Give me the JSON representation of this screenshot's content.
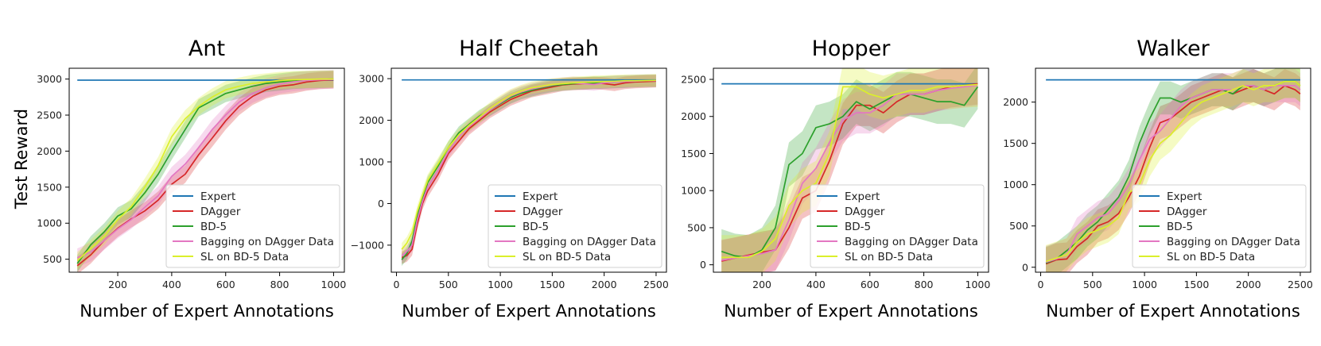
{
  "figure": {
    "ylabel": "Test Reward"
  },
  "colors": {
    "Expert": "#1f77b4",
    "DAgger": "#d62728",
    "BD-5": "#2ca02c",
    "Bagging on DAgger Data": "#e377c2",
    "SL on BD-5 Data": "#dbef2b"
  },
  "chart_data": [
    {
      "type": "line",
      "title": "Ant",
      "xlabel": "Number of Expert Annotations",
      "ylabel": "Test Reward",
      "xlim": [
        20,
        1040
      ],
      "ylim": [
        320,
        3150
      ],
      "xticks": [
        200,
        400,
        600,
        800,
        1000
      ],
      "yticks": [
        500,
        1000,
        1500,
        2000,
        2500,
        3000
      ],
      "legend_loc": "lower right",
      "series": [
        {
          "name": "Expert",
          "x": [
            50,
            1000
          ],
          "y": [
            2985,
            2985
          ],
          "band": 0
        },
        {
          "name": "DAgger",
          "x": [
            50,
            100,
            150,
            200,
            250,
            300,
            350,
            400,
            450,
            500,
            550,
            600,
            650,
            700,
            750,
            800,
            850,
            900,
            950,
            1000
          ],
          "y": [
            410,
            560,
            760,
            930,
            1060,
            1170,
            1320,
            1540,
            1680,
            1950,
            2180,
            2420,
            2620,
            2760,
            2850,
            2900,
            2920,
            2960,
            2980,
            2990
          ],
          "band": 120
        },
        {
          "name": "BD-5",
          "x": [
            50,
            100,
            150,
            200,
            250,
            300,
            350,
            400,
            450,
            500,
            550,
            600,
            650,
            700,
            750,
            800,
            850,
            900,
            950,
            1000
          ],
          "y": [
            440,
            700,
            880,
            1100,
            1200,
            1420,
            1680,
            2000,
            2300,
            2600,
            2700,
            2800,
            2850,
            2900,
            2940,
            2960,
            2980,
            2990,
            2995,
            3000
          ],
          "band": 120
        },
        {
          "name": "Bagging on DAgger Data",
          "x": [
            50,
            100,
            150,
            200,
            250,
            300,
            350,
            400,
            450,
            500,
            550,
            600,
            650,
            700,
            750,
            800,
            850,
            900,
            950,
            1000
          ],
          "y": [
            520,
            600,
            760,
            920,
            1050,
            1220,
            1380,
            1650,
            1820,
            2050,
            2300,
            2500,
            2680,
            2800,
            2880,
            2930,
            2960,
            2980,
            2990,
            2995
          ],
          "band": 130
        },
        {
          "name": "SL on BD-5 Data",
          "x": [
            50,
            100,
            150,
            200,
            250,
            300,
            350,
            400,
            450,
            500,
            550,
            600,
            650,
            700,
            750,
            800,
            850,
            900,
            950,
            1000
          ],
          "y": [
            480,
            650,
            820,
            1050,
            1230,
            1500,
            1800,
            2200,
            2450,
            2620,
            2750,
            2850,
            2900,
            2940,
            2960,
            2980,
            2990,
            2995,
            3000,
            3000
          ],
          "band": 120
        }
      ]
    },
    {
      "type": "line",
      "title": "Half Cheetah",
      "xlabel": "Number of Expert Annotations",
      "ylabel": "",
      "xlim": [
        -50,
        2600
      ],
      "ylim": [
        -1650,
        3250
      ],
      "xticks": [
        0,
        500,
        1000,
        1500,
        2000,
        2500
      ],
      "yticks": [
        -1000,
        0,
        1000,
        2000,
        3000
      ],
      "legend_loc": "lower right",
      "series": [
        {
          "name": "Expert",
          "x": [
            50,
            2500
          ],
          "y": [
            2970,
            2970
          ],
          "band": 0
        },
        {
          "name": "DAgger",
          "x": [
            50,
            100,
            150,
            200,
            250,
            300,
            400,
            500,
            600,
            700,
            800,
            900,
            1000,
            1100,
            1200,
            1300,
            1400,
            1500,
            1600,
            1700,
            1800,
            1900,
            2000,
            2100,
            2200,
            2300,
            2400,
            2500
          ],
          "y": [
            -1300,
            -1250,
            -1100,
            -500,
            0,
            300,
            700,
            1200,
            1500,
            1800,
            2000,
            2200,
            2350,
            2500,
            2600,
            2700,
            2750,
            2800,
            2850,
            2870,
            2880,
            2900,
            2880,
            2850,
            2900,
            2920,
            2930,
            2940
          ],
          "band": 150
        },
        {
          "name": "BD-5",
          "x": [
            50,
            100,
            150,
            200,
            250,
            300,
            400,
            500,
            600,
            700,
            800,
            900,
            1000,
            1100,
            1200,
            1300,
            1400,
            1500,
            1600,
            1700,
            1800,
            1900,
            2000,
            2100,
            2200,
            2300,
            2400,
            2500
          ],
          "y": [
            -1350,
            -1200,
            -900,
            -300,
            100,
            500,
            900,
            1350,
            1700,
            1900,
            2100,
            2250,
            2400,
            2550,
            2650,
            2720,
            2780,
            2830,
            2860,
            2880,
            2890,
            2900,
            2910,
            2920,
            2930,
            2940,
            2950,
            2950
          ],
          "band": 150
        },
        {
          "name": "Bagging on DAgger Data",
          "x": [
            50,
            100,
            150,
            200,
            250,
            300,
            400,
            500,
            600,
            700,
            800,
            900,
            1000,
            1100,
            1200,
            1300,
            1400,
            1500,
            1600,
            1700,
            1800,
            1900,
            2000,
            2100,
            2200,
            2300,
            2400,
            2500
          ],
          "y": [
            -1250,
            -1150,
            -1000,
            -400,
            50,
            400,
            800,
            1250,
            1600,
            1850,
            2050,
            2250,
            2420,
            2580,
            2680,
            2750,
            2800,
            2850,
            2880,
            2900,
            2880,
            2860,
            2900,
            2920,
            2930,
            2940,
            2950,
            2950
          ],
          "band": 150
        },
        {
          "name": "SL on BD-5 Data",
          "x": [
            50,
            100,
            150,
            200,
            250,
            300,
            400,
            500,
            600,
            700,
            800,
            900,
            1000,
            1100,
            1200,
            1300,
            1400,
            1500,
            1600,
            1700,
            1800,
            1900,
            2000,
            2100,
            2200,
            2300,
            2400,
            2500
          ],
          "y": [
            -1100,
            -950,
            -700,
            -200,
            200,
            550,
            950,
            1350,
            1650,
            1880,
            2080,
            2280,
            2450,
            2600,
            2700,
            2780,
            2820,
            2860,
            2880,
            2900,
            2910,
            2920,
            2930,
            2940,
            2950,
            2950,
            2955,
            2960
          ],
          "band": 150
        }
      ]
    },
    {
      "type": "line",
      "title": "Hopper",
      "xlabel": "Number of Expert Annotations",
      "ylabel": "",
      "xlim": [
        20,
        1040
      ],
      "ylim": [
        -100,
        2650
      ],
      "xticks": [
        200,
        400,
        600,
        800,
        1000
      ],
      "yticks": [
        0,
        500,
        1000,
        1500,
        2000,
        2500
      ],
      "legend_loc": "lower right",
      "series": [
        {
          "name": "Expert",
          "x": [
            50,
            1000
          ],
          "y": [
            2440,
            2440
          ],
          "band": 0
        },
        {
          "name": "DAgger",
          "x": [
            50,
            100,
            150,
            200,
            250,
            300,
            350,
            400,
            450,
            500,
            550,
            600,
            650,
            700,
            750,
            800,
            850,
            900,
            950,
            1000
          ],
          "y": [
            50,
            90,
            130,
            170,
            200,
            500,
            900,
            1000,
            1400,
            1900,
            2150,
            2150,
            2050,
            2200,
            2300,
            2300,
            2350,
            2400,
            2420,
            2440
          ],
          "band": 280
        },
        {
          "name": "BD-5",
          "x": [
            50,
            100,
            150,
            200,
            250,
            300,
            350,
            400,
            450,
            500,
            550,
            600,
            650,
            700,
            750,
            800,
            850,
            900,
            950,
            1000
          ],
          "y": [
            180,
            120,
            100,
            200,
            500,
            1350,
            1500,
            1850,
            1900,
            2000,
            2200,
            2100,
            2200,
            2300,
            2300,
            2250,
            2200,
            2200,
            2150,
            2400
          ],
          "band": 300
        },
        {
          "name": "Bagging on DAgger Data",
          "x": [
            50,
            100,
            150,
            200,
            250,
            300,
            350,
            400,
            450,
            500,
            550,
            600,
            650,
            700,
            750,
            800,
            850,
            900,
            950,
            1000
          ],
          "y": [
            60,
            90,
            120,
            150,
            200,
            600,
            1100,
            1300,
            1650,
            1950,
            2050,
            2050,
            2150,
            2300,
            2300,
            2300,
            2350,
            2380,
            2400,
            2420
          ],
          "band": 280
        },
        {
          "name": "SL on BD-5 Data",
          "x": [
            50,
            100,
            150,
            200,
            250,
            300,
            350,
            400,
            450,
            500,
            550,
            600,
            650,
            700,
            750,
            800,
            850,
            900,
            950,
            1000
          ],
          "y": [
            100,
            100,
            100,
            180,
            350,
            800,
            1000,
            1100,
            1500,
            2400,
            2400,
            2300,
            2250,
            2300,
            2350,
            2350,
            2400,
            2400,
            2420,
            2430
          ],
          "band": 300
        }
      ]
    },
    {
      "type": "line",
      "title": "Walker",
      "xlabel": "Number of Expert Annotations",
      "ylabel": "",
      "xlim": [
        -50,
        2600
      ],
      "ylim": [
        -60,
        2410
      ],
      "xticks": [
        0,
        500,
        1000,
        1500,
        2000,
        2500
      ],
      "yticks": [
        0,
        500,
        1000,
        1500,
        2000
      ],
      "legend_loc": "lower right",
      "series": [
        {
          "name": "Expert",
          "x": [
            50,
            2500
          ],
          "y": [
            2270,
            2270
          ],
          "band": 0
        },
        {
          "name": "DAgger",
          "x": [
            50,
            150,
            250,
            350,
            450,
            550,
            650,
            750,
            850,
            950,
            1050,
            1150,
            1250,
            1350,
            1450,
            1550,
            1650,
            1750,
            1850,
            1950,
            2050,
            2150,
            2250,
            2350,
            2450,
            2500
          ],
          "y": [
            40,
            90,
            100,
            250,
            350,
            500,
            550,
            650,
            850,
            1100,
            1450,
            1750,
            1800,
            1900,
            2000,
            2050,
            2100,
            2150,
            2100,
            2150,
            2200,
            2150,
            2100,
            2200,
            2150,
            2100
          ],
          "band": 200
        },
        {
          "name": "BD-5",
          "x": [
            50,
            150,
            250,
            350,
            450,
            550,
            650,
            750,
            850,
            950,
            1050,
            1150,
            1250,
            1350,
            1450,
            1550,
            1650,
            1750,
            1850,
            1950,
            2050,
            2150,
            2250,
            2350,
            2450,
            2500
          ],
          "y": [
            50,
            100,
            200,
            300,
            450,
            550,
            700,
            850,
            1100,
            1500,
            1800,
            2050,
            2050,
            2000,
            2050,
            2100,
            2150,
            2150,
            2100,
            2200,
            2200,
            2150,
            2200,
            2250,
            2250,
            2200
          ],
          "band": 200
        },
        {
          "name": "Bagging on DAgger Data",
          "x": [
            50,
            150,
            250,
            350,
            450,
            550,
            650,
            750,
            850,
            950,
            1050,
            1150,
            1250,
            1350,
            1450,
            1550,
            1650,
            1750,
            1850,
            1950,
            2050,
            2150,
            2250,
            2350,
            2450,
            2500
          ],
          "y": [
            60,
            100,
            150,
            400,
            500,
            600,
            650,
            800,
            1000,
            1300,
            1550,
            1650,
            1800,
            1950,
            2050,
            2100,
            2150,
            2150,
            2150,
            2200,
            2200,
            2150,
            2200,
            2200,
            2200,
            2150
          ],
          "band": 200
        },
        {
          "name": "SL on BD-5 Data",
          "x": [
            50,
            150,
            250,
            350,
            450,
            550,
            650,
            750,
            850,
            950,
            1050,
            1150,
            1250,
            1350,
            1450,
            1550,
            1650,
            1750,
            1850,
            1950,
            2050,
            2150,
            2250,
            2350,
            2450,
            2500
          ],
          "y": [
            70,
            110,
            150,
            300,
            400,
            450,
            500,
            600,
            900,
            1000,
            1300,
            1500,
            1600,
            1750,
            1900,
            2000,
            2050,
            2100,
            2150,
            2200,
            2150,
            2200,
            2200,
            2250,
            2250,
            2200
          ],
          "band": 200
        }
      ]
    }
  ]
}
